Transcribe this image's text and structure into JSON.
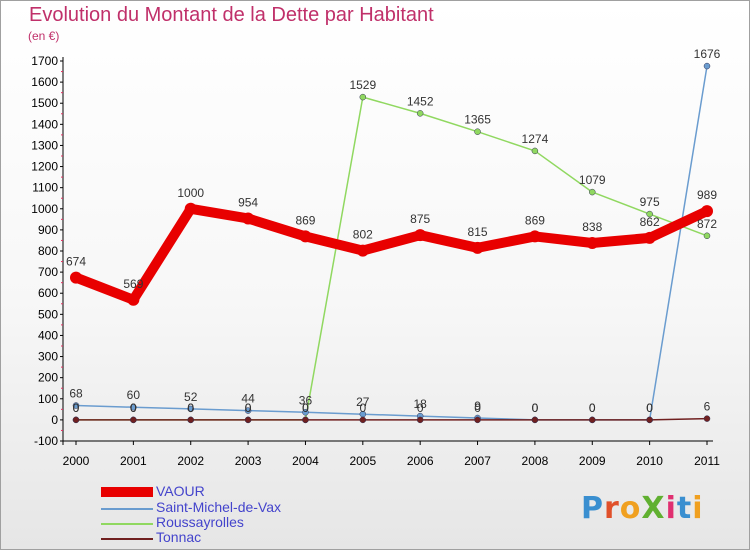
{
  "title": "Evolution du Montant de la Dette par Habitant",
  "subtitle": "(en €)",
  "logo": {
    "text": "ProXiti",
    "letter_colors": [
      "#3a8fd0",
      "#e0502a",
      "#f0a020",
      "#60b030",
      "#e03070",
      "#3a8fd0",
      "#f0a020"
    ]
  },
  "chart_data": {
    "type": "line",
    "x": [
      "2000",
      "2001",
      "2002",
      "2003",
      "2004",
      "2005",
      "2006",
      "2007",
      "2008",
      "2009",
      "2010",
      "2011"
    ],
    "ylim": [
      -100,
      1700
    ],
    "yticks": [
      -100,
      0,
      100,
      200,
      300,
      400,
      500,
      600,
      700,
      800,
      900,
      1000,
      1100,
      1200,
      1300,
      1400,
      1500,
      1600,
      1700
    ],
    "grid": false,
    "legend_position": "bottom-left",
    "series": [
      {
        "name": "VAOUR",
        "color": "#e80000",
        "values": [
          674,
          569,
          1000,
          954,
          869,
          802,
          875,
          815,
          869,
          838,
          862,
          989
        ],
        "labels": [
          "674",
          "569",
          "1000",
          "954",
          "869",
          "802",
          "875",
          "815",
          "869",
          "838",
          "862",
          "989"
        ]
      },
      {
        "name": "Saint-Michel-de-Vax",
        "color": "#6a9ccf",
        "values": [
          68,
          60,
          52,
          44,
          36,
          27,
          18,
          9,
          0,
          0,
          0,
          1676
        ],
        "labels": [
          "68",
          "60",
          "52",
          "44",
          "36",
          "27",
          "18",
          "9",
          "0",
          "0",
          "0",
          "1676"
        ]
      },
      {
        "name": "Roussayrolles",
        "color": "#90d860",
        "values": [
          0,
          0,
          0,
          0,
          0,
          1529,
          1452,
          1365,
          1274,
          1079,
          975,
          872
        ],
        "labels": [
          "0",
          "0",
          "0",
          "0",
          "0",
          "1529",
          "1452",
          "1365",
          "1274",
          "1079",
          "975",
          "872"
        ]
      },
      {
        "name": "Tonnac",
        "color": "#702020",
        "values": [
          0,
          0,
          0,
          0,
          0,
          0,
          0,
          0,
          0,
          0,
          0,
          6
        ],
        "labels": [
          "0",
          "0",
          "0",
          "0",
          "0",
          "0",
          "0",
          "0",
          "0",
          "0",
          "0",
          "6"
        ]
      }
    ]
  }
}
